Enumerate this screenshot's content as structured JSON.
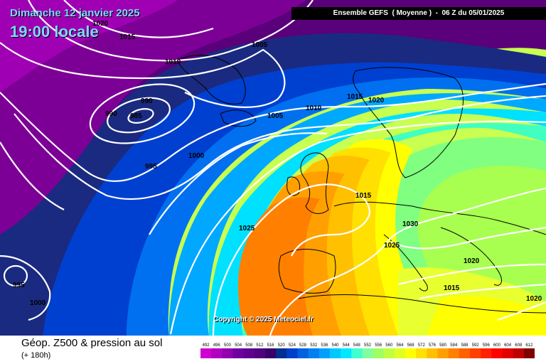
{
  "header": {
    "date": "Dimanche 12 janvier 2025",
    "local_time": "19:00 locale",
    "model_run": "Ensemble GEFS  ( Moyenne )  -  06 Z du 05/01/2025"
  },
  "copyright": "Copyright © 2025 Meteociel.fr",
  "footer": {
    "parameter": "Géop. Z500 & pression au sol",
    "lead_time": "(+ 180h)"
  },
  "legend": {
    "values": [
      "492",
      "496",
      "500",
      "504",
      "508",
      "512",
      "516",
      "520",
      "524",
      "528",
      "532",
      "536",
      "540",
      "544",
      "548",
      "552",
      "556",
      "560",
      "564",
      "568",
      "572",
      "576",
      "580",
      "584",
      "588",
      "592",
      "596",
      "600",
      "604",
      "608",
      "612"
    ],
    "colors": [
      "#d000d0",
      "#b000c0",
      "#9000b0",
      "#7000a0",
      "#600090",
      "#500080",
      "#3a006a",
      "#003090",
      "#0040c8",
      "#0060e0",
      "#0080f0",
      "#00a0ff",
      "#00c8ff",
      "#00e8ff",
      "#40ffd0",
      "#80ffa0",
      "#a0ff60",
      "#c0ff40",
      "#e0ff20",
      "#ffff00",
      "#ffe000",
      "#ffc000",
      "#ffa000",
      "#ff8000",
      "#ff6000",
      "#ff4000",
      "#ff2000",
      "#ff0000",
      "#e00000",
      "#c00000",
      "#800000"
    ]
  },
  "isobars": [
    {
      "label": "1020"
    },
    {
      "label": "1015"
    },
    {
      "label": "1010"
    },
    {
      "label": "1005"
    },
    {
      "label": "990"
    },
    {
      "label": "990"
    },
    {
      "label": "985"
    },
    {
      "label": "1000"
    },
    {
      "label": "995"
    },
    {
      "label": "1005"
    },
    {
      "label": "1010"
    },
    {
      "label": "1015"
    },
    {
      "label": "1020"
    },
    {
      "label": "1015"
    },
    {
      "label": "1025"
    },
    {
      "label": "1030"
    },
    {
      "label": "1025"
    },
    {
      "label": "1020"
    },
    {
      "label": "1015"
    },
    {
      "label": "1020"
    },
    {
      "label": "995"
    },
    {
      "label": "1000"
    }
  ]
}
